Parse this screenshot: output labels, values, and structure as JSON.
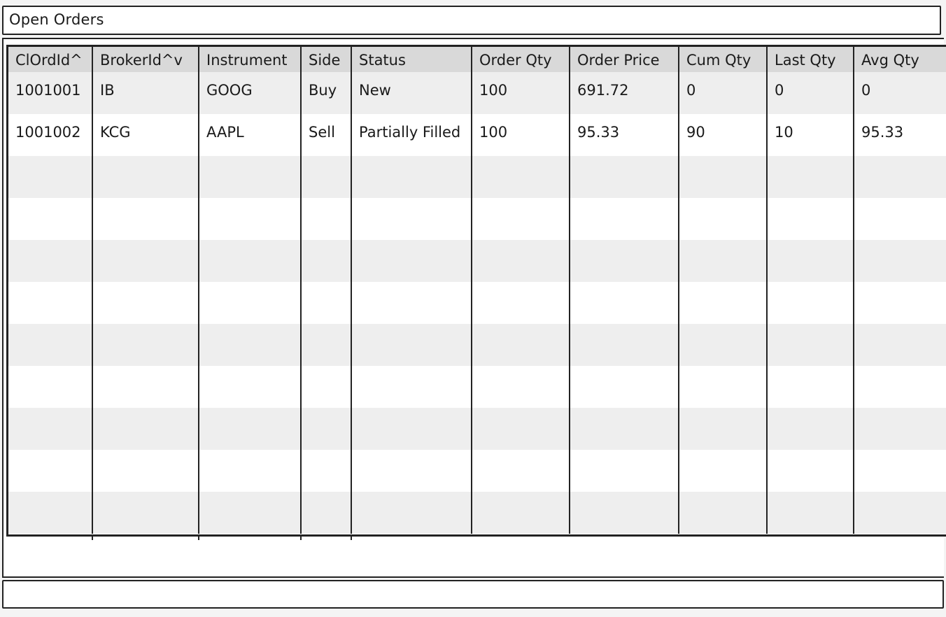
{
  "window": {
    "title": "Open Orders"
  },
  "table": {
    "columns": [
      "ClOrdId^",
      "BrokerId^v",
      "Instrument",
      "Side",
      "Status",
      "Order Qty",
      "Order Price",
      "Cum Qty",
      "Last Qty",
      "Avg Qty"
    ],
    "rows": [
      [
        "1001001",
        "IB",
        "GOOG",
        "Buy",
        "New",
        "100",
        "691.72",
        "0",
        "0",
        "0"
      ],
      [
        "1001002",
        "KCG",
        "AAPL",
        "Sell",
        "Partially Filled",
        "100",
        "95.33",
        "90",
        "10",
        "95.33"
      ],
      [
        "",
        "",
        "",
        "",
        "",
        "",
        "",
        "",
        "",
        ""
      ],
      [
        "",
        "",
        "",
        "",
        "",
        "",
        "",
        "",
        "",
        ""
      ],
      [
        "",
        "",
        "",
        "",
        "",
        "",
        "",
        "",
        "",
        ""
      ],
      [
        "",
        "",
        "",
        "",
        "",
        "",
        "",
        "",
        "",
        ""
      ],
      [
        "",
        "",
        "",
        "",
        "",
        "",
        "",
        "",
        "",
        ""
      ],
      [
        "",
        "",
        "",
        "",
        "",
        "",
        "",
        "",
        "",
        ""
      ],
      [
        "",
        "",
        "",
        "",
        "",
        "",
        "",
        "",
        "",
        ""
      ],
      [
        "",
        "",
        "",
        "",
        "",
        "",
        "",
        "",
        "",
        ""
      ],
      [
        "",
        "",
        "",
        "",
        "",
        "",
        "",
        "",
        "",
        ""
      ]
    ]
  },
  "colors": {
    "header_bg": "#d9d9d9",
    "row_alt_bg": "#eeeeee",
    "border": "#222222"
  }
}
